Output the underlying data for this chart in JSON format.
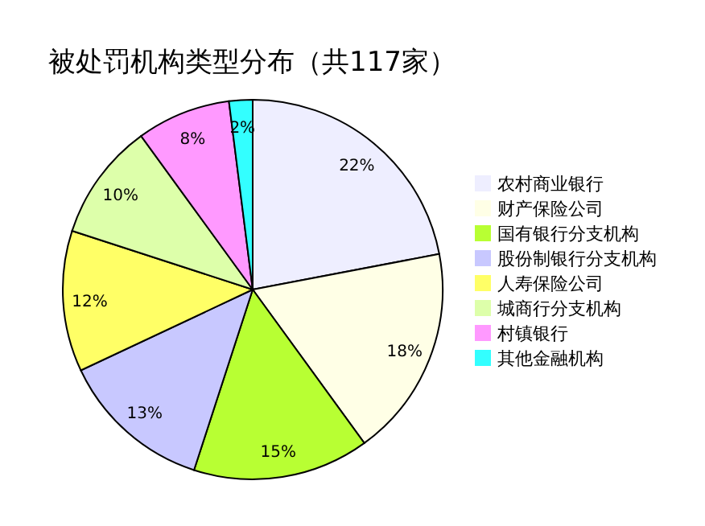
{
  "chart_data": {
    "type": "pie",
    "title": "被处罚机构类型分布（共117家）",
    "categories": [
      "农村商业银行",
      "财产保险公司",
      "国有银行分支机构",
      "股份制银行分支机构",
      "人寿保险公司",
      "城商行分支机构",
      "村镇银行",
      "其他金融机构"
    ],
    "values": [
      22,
      18,
      15,
      13,
      12,
      10,
      8,
      2
    ],
    "value_labels": [
      "22%",
      "18%",
      "15%",
      "13%",
      "12%",
      "10%",
      "8%",
      "2%"
    ],
    "colors": [
      "#eeeeff",
      "#ffffe6",
      "#b8ff33",
      "#c8c8ff",
      "#ffff66",
      "#ddffaa",
      "#ff99ff",
      "#33ffff"
    ],
    "legend": "right"
  }
}
